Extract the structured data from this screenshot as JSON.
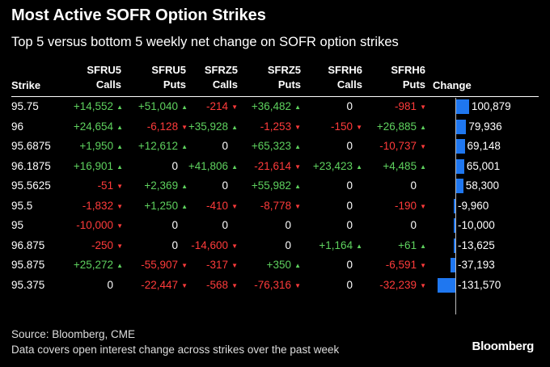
{
  "title": "Most Active SOFR Option Strikes",
  "subtitle": "Top 5 versus bottom 5 weekly net change on SOFR option strikes",
  "columns": {
    "strike": "Strike",
    "c1_top": "SFRU5",
    "c1_bot": "Calls",
    "c2_top": "SFRU5",
    "c2_bot": "Puts",
    "c3_top": "SFRZ5",
    "c3_bot": "Calls",
    "c4_top": "SFRZ5",
    "c4_bot": "Puts",
    "c5_top": "SFRH6",
    "c5_bot": "Calls",
    "c6_top": "SFRH6",
    "c6_bot": "Puts",
    "change": "Change"
  },
  "colors": {
    "positive": "#5ed15e",
    "negative": "#ff3b3b",
    "bar": "#1f77f0"
  },
  "chart_data": {
    "type": "table",
    "title": "Most Active SOFR Option Strikes",
    "subtitle": "Top 5 versus bottom 5 weekly net change on SOFR option strikes",
    "bar_column": "Change",
    "rows": [
      {
        "strike": "95.75",
        "values": [
          "+14,552",
          "+51,040",
          "-214",
          "+36,482",
          "0",
          "-981"
        ],
        "change": 100879,
        "change_label": "100,879"
      },
      {
        "strike": "96",
        "values": [
          "+24,654",
          "-6,128",
          "+35,928",
          "-1,253",
          "-150",
          "+26,885"
        ],
        "change": 79936,
        "change_label": "79,936"
      },
      {
        "strike": "95.6875",
        "values": [
          "+1,950",
          "+12,612",
          "0",
          "+65,323",
          "0",
          "-10,737"
        ],
        "change": 69148,
        "change_label": "69,148"
      },
      {
        "strike": "96.1875",
        "values": [
          "+16,901",
          "0",
          "+41,806",
          "-21,614",
          "+23,423",
          "+4,485"
        ],
        "change": 65001,
        "change_label": "65,001"
      },
      {
        "strike": "95.5625",
        "values": [
          "-51",
          "+2,369",
          "0",
          "+55,982",
          "0",
          "0"
        ],
        "change": 58300,
        "change_label": "58,300"
      },
      {
        "strike": "95.5",
        "values": [
          "-1,832",
          "+1,250",
          "-410",
          "-8,778",
          "0",
          "-190"
        ],
        "change": -9960,
        "change_label": "-9,960"
      },
      {
        "strike": "95",
        "values": [
          "-10,000",
          "0",
          "0",
          "0",
          "0",
          "0"
        ],
        "change": -10000,
        "change_label": "-10,000"
      },
      {
        "strike": "96.875",
        "values": [
          "-250",
          "0",
          "-14,600",
          "0",
          "+1,164",
          "+61"
        ],
        "change": -13625,
        "change_label": "-13,625"
      },
      {
        "strike": "95.875",
        "values": [
          "+25,272",
          "-55,907",
          "-317",
          "+350",
          "0",
          "-6,591"
        ],
        "change": -37193,
        "change_label": "-37,193"
      },
      {
        "strike": "95.375",
        "values": [
          "0",
          "-22,447",
          "-568",
          "-76,316",
          "0",
          "-32,239"
        ],
        "change": -131570,
        "change_label": "-131,570"
      }
    ]
  },
  "footer": {
    "source": "Source: Bloomberg, CME",
    "note": "Data covers open interest change across strikes over the past week",
    "brand": "Bloomberg"
  }
}
